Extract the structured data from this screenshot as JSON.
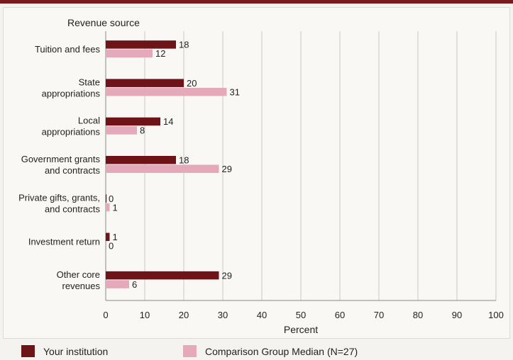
{
  "chart_data": {
    "type": "bar",
    "orientation": "horizontal",
    "title": "Revenue source",
    "xlabel": "Percent",
    "xlim": [
      0,
      100
    ],
    "xticks": [
      0,
      10,
      20,
      30,
      40,
      50,
      60,
      70,
      80,
      90,
      100
    ],
    "grid": true,
    "legend_position": "bottom",
    "categories": [
      [
        "Tuition and fees"
      ],
      [
        "State",
        "appropriations"
      ],
      [
        "Local",
        "appropriations"
      ],
      [
        "Government grants",
        "and contracts"
      ],
      [
        "Private gifts, grants,",
        "and contracts"
      ],
      [
        "Investment return"
      ],
      [
        "Other core",
        "revenues"
      ]
    ],
    "series": [
      {
        "name": "Your institution",
        "color": "#6e1318",
        "values": [
          18,
          20,
          14,
          18,
          0,
          1,
          29
        ]
      },
      {
        "name": "Comparison Group Median (N=27)",
        "color": "#e4a9ba",
        "values": [
          12,
          31,
          8,
          29,
          1,
          0,
          6
        ]
      }
    ]
  }
}
